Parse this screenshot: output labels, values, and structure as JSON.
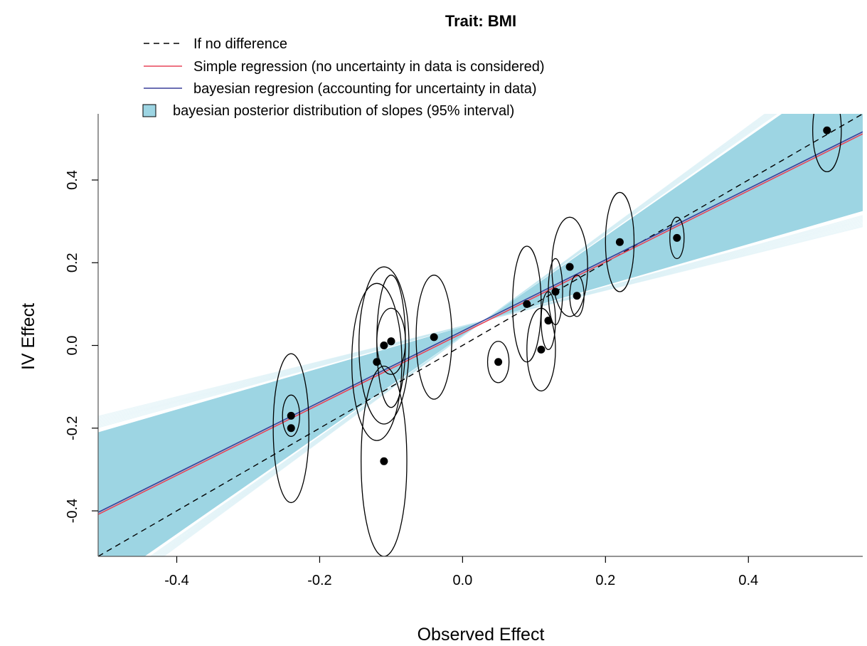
{
  "chart_data": {
    "type": "scatter",
    "title": "Trait: BMI",
    "xlabel": "Observed Effect",
    "ylabel": "IV Effect",
    "xlim": [
      -0.51,
      0.56
    ],
    "ylim": [
      -0.51,
      0.56
    ],
    "x_ticks": [
      -0.4,
      -0.2,
      0.0,
      0.2,
      0.4
    ],
    "x_tick_labels": [
      "-0.4",
      "-0.2",
      "0.0",
      "0.2",
      "0.4"
    ],
    "y_ticks": [
      -0.4,
      -0.2,
      0.0,
      0.2,
      0.4
    ],
    "y_tick_labels": [
      "-0.4",
      "-0.2",
      "0.0",
      "0.2",
      "0.4"
    ],
    "grid": false,
    "legend_position": "top",
    "legend": [
      {
        "label": "If no difference",
        "style": "dashed",
        "color": "#000000"
      },
      {
        "label": "Simple regression (no uncertainty in data is considered)",
        "style": "line",
        "color": "#e8455a"
      },
      {
        "label": "bayesian regresion (accounting for uncertainty in data)",
        "style": "line",
        "color": "#3a3f9a"
      },
      {
        "label": "bayesian posterior distribution of slopes (95% interval)",
        "style": "box",
        "color": "#9dd5e3"
      }
    ],
    "colors": {
      "band": "#9dd5e3",
      "band_light": "#c4e7f0",
      "simple_regression": "#e8455a",
      "bayesian_regression": "#3a3f9a",
      "points": "#000000"
    },
    "lines": {
      "no_difference": {
        "intercept": 0.0,
        "slope": 1.0
      },
      "simple_regression": {
        "intercept": 0.03,
        "slope": 0.86
      },
      "bayesian_regression": {
        "intercept": 0.035,
        "slope": 0.86
      }
    },
    "posterior_band": {
      "pivot": [
        0.03,
        0.06
      ],
      "lower_slope": 0.5,
      "upper_slope": 1.2
    },
    "points": [
      {
        "x": -0.24,
        "y": -0.17,
        "sd_x": 0.012,
        "sd_y": 0.05
      },
      {
        "x": -0.24,
        "y": -0.2,
        "sd_x": 0.025,
        "sd_y": 0.18
      },
      {
        "x": -0.12,
        "y": -0.04,
        "sd_x": 0.035,
        "sd_y": 0.19
      },
      {
        "x": -0.11,
        "y": 0.0,
        "sd_x": 0.035,
        "sd_y": 0.19
      },
      {
        "x": -0.1,
        "y": 0.01,
        "sd_x": 0.02,
        "sd_y": 0.08
      },
      {
        "x": -0.1,
        "y": 0.01,
        "sd_x": 0.02,
        "sd_y": 0.16
      },
      {
        "x": -0.11,
        "y": -0.28,
        "sd_x": 0.032,
        "sd_y": 0.23
      },
      {
        "x": -0.04,
        "y": 0.02,
        "sd_x": 0.025,
        "sd_y": 0.15
      },
      {
        "x": 0.05,
        "y": -0.04,
        "sd_x": 0.015,
        "sd_y": 0.05
      },
      {
        "x": 0.09,
        "y": 0.1,
        "sd_x": 0.02,
        "sd_y": 0.14
      },
      {
        "x": 0.11,
        "y": -0.01,
        "sd_x": 0.02,
        "sd_y": 0.1
      },
      {
        "x": 0.12,
        "y": 0.06,
        "sd_x": 0.01,
        "sd_y": 0.07
      },
      {
        "x": 0.13,
        "y": 0.13,
        "sd_x": 0.01,
        "sd_y": 0.08
      },
      {
        "x": 0.15,
        "y": 0.19,
        "sd_x": 0.025,
        "sd_y": 0.12
      },
      {
        "x": 0.16,
        "y": 0.12,
        "sd_x": 0.01,
        "sd_y": 0.05
      },
      {
        "x": 0.22,
        "y": 0.25,
        "sd_x": 0.02,
        "sd_y": 0.12
      },
      {
        "x": 0.3,
        "y": 0.26,
        "sd_x": 0.01,
        "sd_y": 0.05
      },
      {
        "x": 0.51,
        "y": 0.52,
        "sd_x": 0.02,
        "sd_y": 0.1
      }
    ]
  }
}
